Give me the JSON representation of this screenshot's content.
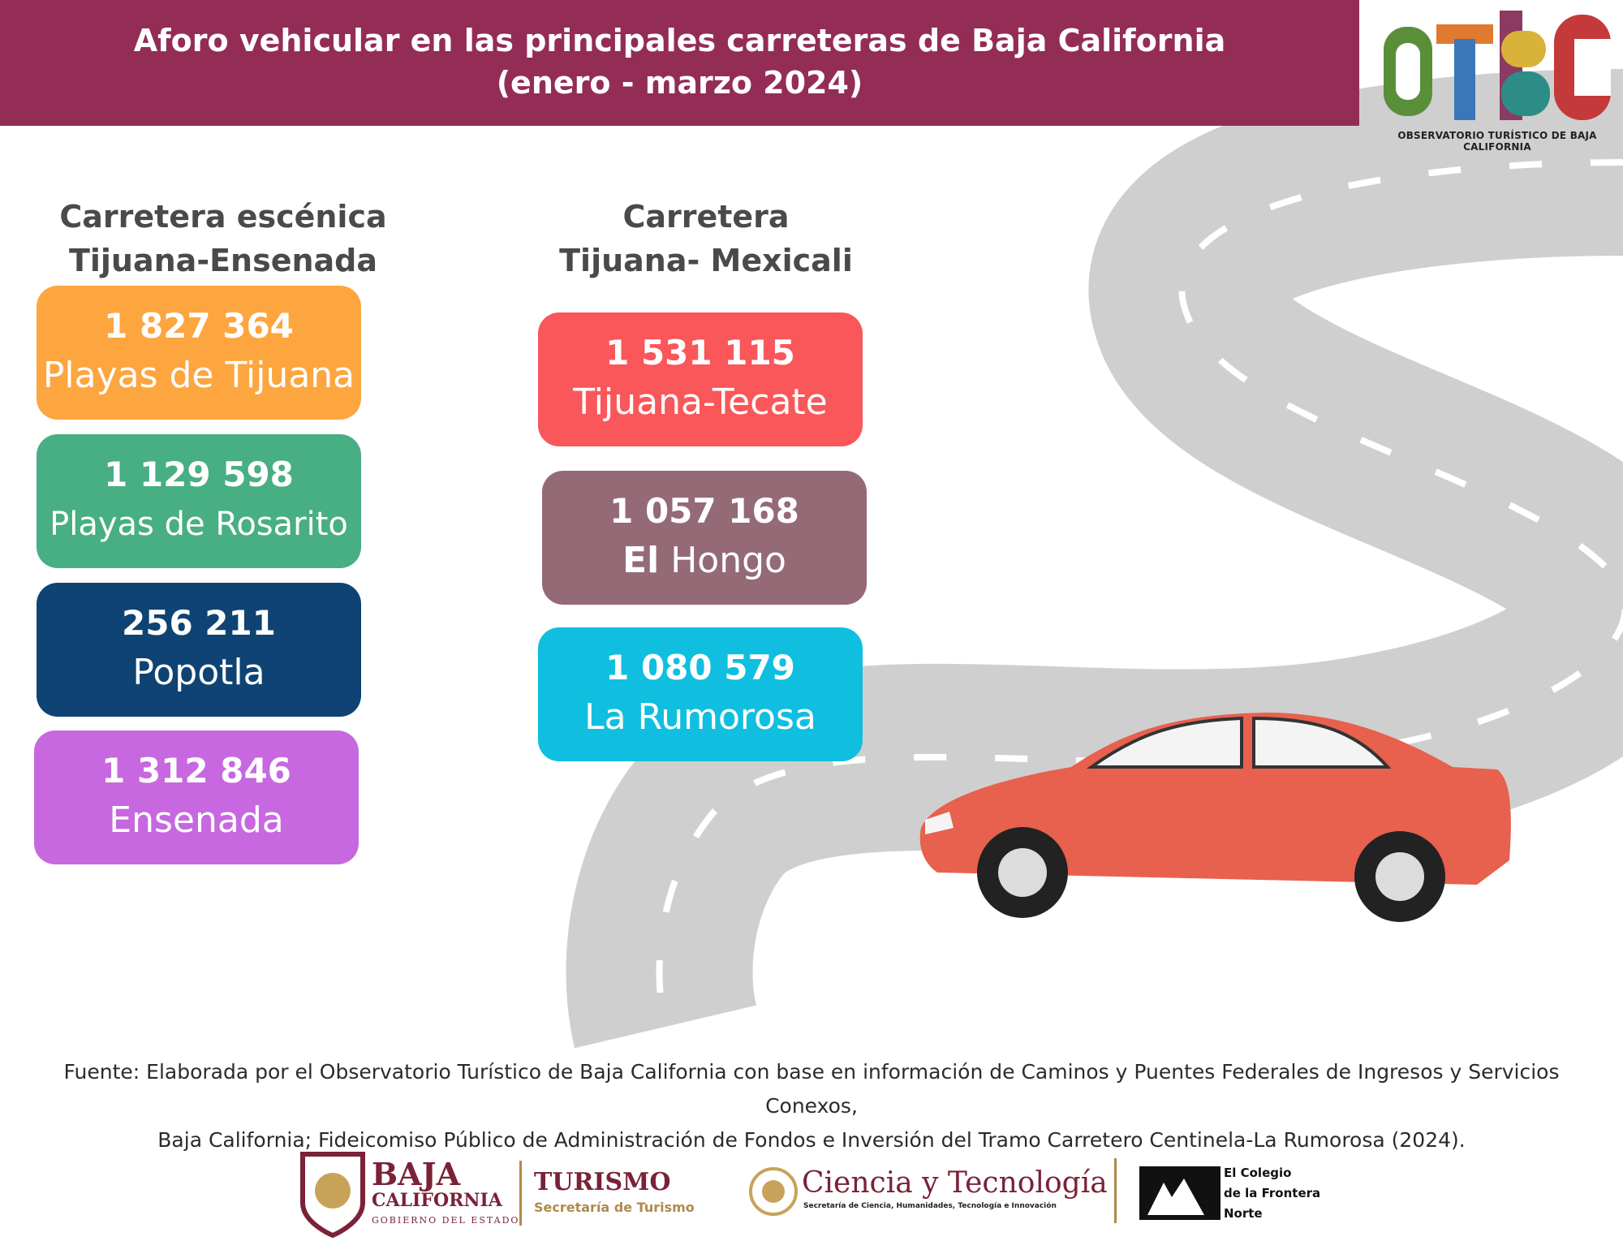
{
  "header": {
    "title_line1": "Aforo vehicular en las principales carreteras de Baja California",
    "title_line2": "(enero - marzo 2024)"
  },
  "logo": {
    "letters": "OTBC",
    "caption": "OBSERVATORIO TURÍSTICO DE BAJA CALIFORNIA"
  },
  "columns": [
    {
      "title_line1": "Carretera escénica",
      "title_line2": "Tijuana-Ensenada",
      "cards": [
        {
          "value": "1 827 364",
          "label": "Playas de Tijuana",
          "color": "#fda53f"
        },
        {
          "value": "1 129 598",
          "label": "Playas de Rosarito",
          "color": "#48ae83"
        },
        {
          "value": "256 211",
          "label": "Popotla",
          "color": "#0e4373"
        },
        {
          "value": "1 312 846",
          "label": "Ensenada",
          "color": "#c768e0"
        }
      ]
    },
    {
      "title_line1": "Carretera",
      "title_line2": "Tijuana- Mexicali",
      "cards": [
        {
          "value": "1 531 115",
          "label": "Tijuana-Tecate",
          "color": "#f9575a"
        },
        {
          "value": "1 057 168",
          "label_bold": "El",
          "label": "Hongo",
          "color": "#946a76"
        },
        {
          "value": "1 080 579",
          "label": "La Rumorosa",
          "color": "#10bfe0"
        }
      ]
    }
  ],
  "source": {
    "line1": "Fuente: Elaborada por el Observatorio Turístico de Baja California con base en información de Caminos y Puentes Federales de Ingresos y Servicios Conexos,",
    "line2": "Baja California; Fideicomiso Público de Administración de Fondos e Inversión del Tramo Carretero Centinela-La Rumorosa (2024)."
  },
  "footer": {
    "bc_line1": "BAJA",
    "bc_line2": "CALIFORNIA",
    "bc_line3": "GOBIERNO DEL ESTADO",
    "turismo": "TURISMO",
    "turismo_sub": "Secretaría de Turismo",
    "ciencia": "Ciencia y Tecnología",
    "ciencia_sub": "Secretaría de Ciencia, Humanidades, Tecnología e Innovación",
    "colef_line1": "El Colegio",
    "colef_line2": "de la Frontera",
    "colef_line3": "Norte"
  },
  "colors": {
    "header": "#932d55",
    "road": "#cfcfcf",
    "car": "#e8604e"
  }
}
